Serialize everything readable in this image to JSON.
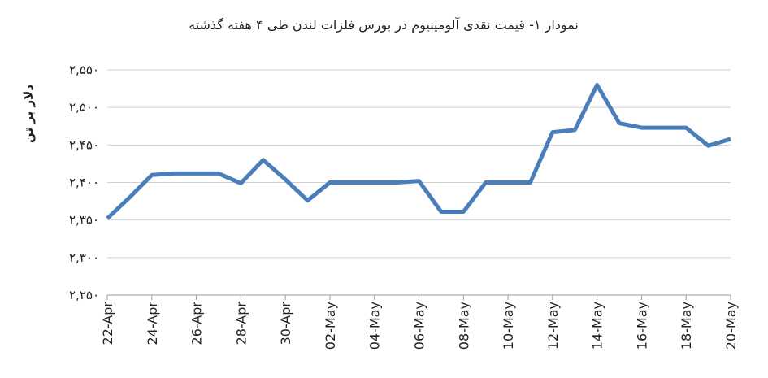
{
  "chart_data": {
    "type": "line",
    "title": "نمودار ۱- قیمت نقدی آلومینیوم در بورس فلزات لندن طی ۴ هفته گذشته",
    "y_label": "دلار بر تن",
    "categories": [
      "22-Apr",
      null,
      "24-Apr",
      null,
      "26-Apr",
      null,
      "28-Apr",
      null,
      "30-Apr",
      null,
      "02-May",
      null,
      "04-May",
      null,
      "06-May",
      null,
      "08-May",
      null,
      "10-May",
      null,
      "12-May",
      null,
      "14-May",
      null,
      "16-May",
      null,
      "18-May",
      null,
      "20-May"
    ],
    "series": [
      {
        "name": "Aluminium",
        "color": "#4a7ebb",
        "values": [
          2352,
          2380,
          2410,
          2412,
          2412,
          2412,
          2399,
          2430,
          2404,
          2376,
          2400,
          2400,
          2400,
          2400,
          2402,
          2361,
          2361,
          2400,
          2400,
          2400,
          2467,
          2470,
          2530,
          2479,
          2473,
          2473,
          2473,
          2449,
          2458
        ]
      }
    ],
    "ylim": [
      2250,
      2550
    ],
    "yticks": [
      {
        "value": 2250,
        "label": "۲,۲۵۰"
      },
      {
        "value": 2300,
        "label": "۲,۳۰۰"
      },
      {
        "value": 2350,
        "label": "۲,۳۵۰"
      },
      {
        "value": 2400,
        "label": "۲,۴۰۰"
      },
      {
        "value": 2450,
        "label": "۲,۴۵۰"
      },
      {
        "value": 2500,
        "label": "۲,۵۰۰"
      },
      {
        "value": 2550,
        "label": "۲,۵۵۰"
      }
    ],
    "grid": true
  }
}
